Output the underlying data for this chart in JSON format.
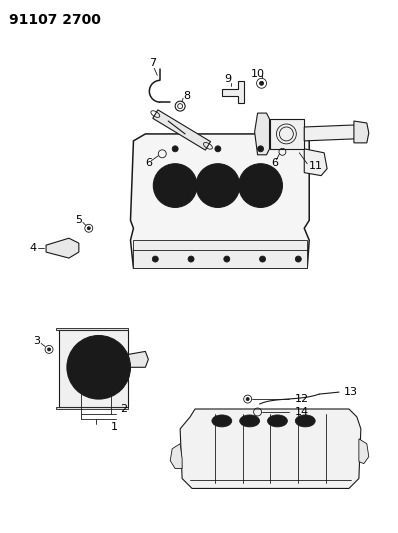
{
  "title": "91107 2700",
  "bg_color": "#ffffff",
  "line_color": "#1a1a1a",
  "label_color": "#000000",
  "title_fontsize": 10,
  "label_fontsize": 8,
  "fig_width": 3.98,
  "fig_height": 5.33,
  "dpi": 100
}
